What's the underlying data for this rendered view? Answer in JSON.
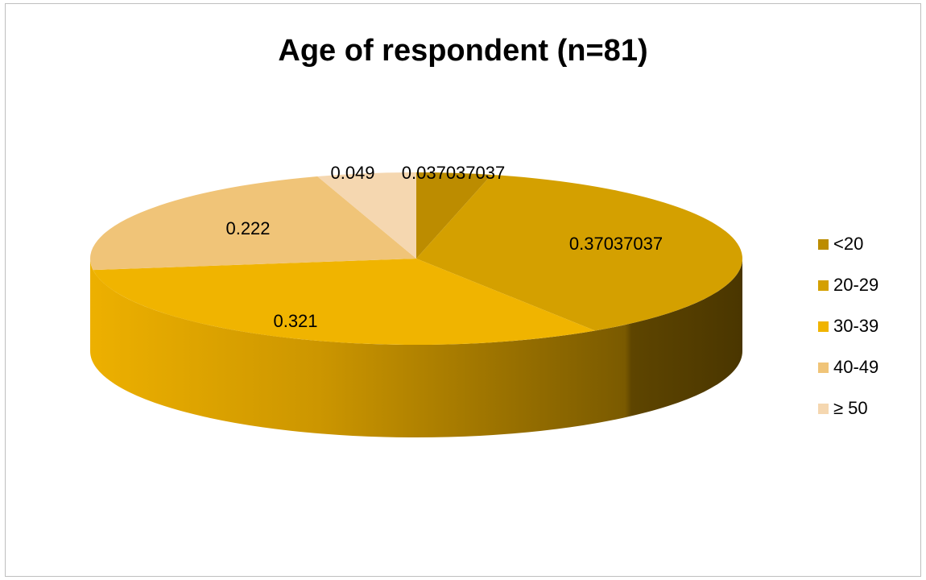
{
  "chart_data": {
    "type": "pie",
    "title": "Age of respondent (n=81)",
    "categories": [
      "<20",
      "20-29",
      "30-39",
      "40-49",
      "≥ 50"
    ],
    "values": [
      0.037037037,
      0.37037037,
      0.321,
      0.222,
      0.049
    ],
    "data_labels": [
      "0.037037037",
      "0.37037037",
      "0.321",
      "0.222",
      "0.049"
    ],
    "colors": [
      "#BC8C00",
      "#D4A000",
      "#F0B400",
      "#F0C478",
      "#F5D7B0"
    ],
    "legend_position": "right",
    "style": "3d"
  }
}
